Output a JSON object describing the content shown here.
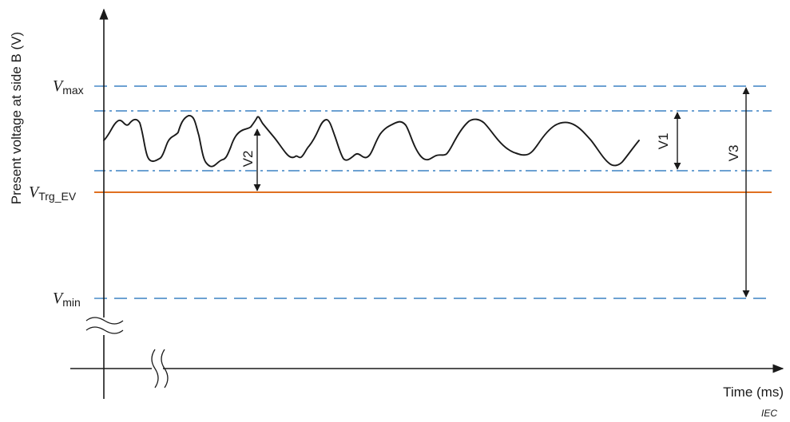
{
  "y_axis_label": "Present voltage at side B  (V)",
  "x_axis_label": "Time  (ms)",
  "levels": {
    "vmax": {
      "symbol": "V",
      "subscript": "max"
    },
    "vtrg": {
      "symbol": "V",
      "subscript": "Trg_EV"
    },
    "vmin": {
      "symbol": "V",
      "subscript": "min"
    }
  },
  "dimensions": {
    "v1": "V1",
    "v2": "V2",
    "v3": "V3"
  },
  "source": "IEC",
  "colors": {
    "dashed_lines": "#3b82c4",
    "trigger_line": "#e07020",
    "signal": "#1a1a1a",
    "axes": "#1a1a1a"
  }
}
